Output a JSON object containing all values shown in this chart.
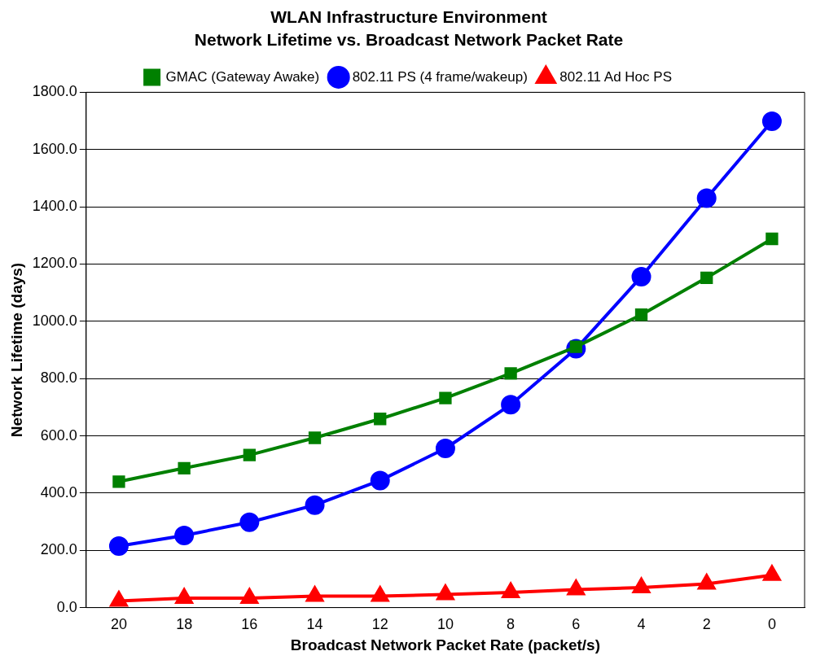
{
  "chart_data": {
    "type": "line",
    "title": "WLAN Infrastructure Environment",
    "subtitle": "Network Lifetime vs. Broadcast Network Packet Rate",
    "xlabel": "Broadcast Network Packet Rate (packet/s)",
    "ylabel": "Network Lifetime (days)",
    "categories": [
      "20",
      "18",
      "16",
      "14",
      "12",
      "10",
      "8",
      "6",
      "4",
      "2",
      "0"
    ],
    "series": [
      {
        "name": "802.11 Ad Hoc PS",
        "color": "#ff0000",
        "marker": "triangle",
        "values": [
          23,
          33,
          33,
          40,
          40,
          46,
          53,
          63,
          70,
          83,
          113
        ]
      },
      {
        "name": "802.11 PS (4 frame/wakeup)",
        "color": "#0000ff",
        "marker": "circle",
        "values": [
          215,
          252,
          298,
          358,
          444,
          556,
          709,
          904,
          1156,
          1430,
          1699
        ]
      },
      {
        "name": "GMAC (Gateway Awake)",
        "color": "#008000",
        "marker": "square",
        "values": [
          440,
          487,
          533,
          593,
          659,
          732,
          818,
          911,
          1023,
          1152,
          1288
        ]
      }
    ],
    "ylim": [
      0,
      1800
    ],
    "yticks": [
      {
        "value": 0,
        "label": "0.0"
      },
      {
        "value": 200,
        "label": "200.0"
      },
      {
        "value": 400,
        "label": "400.0"
      },
      {
        "value": 600,
        "label": "600.0"
      },
      {
        "value": 800,
        "label": "800.0"
      },
      {
        "value": 1000,
        "label": "1000.0"
      },
      {
        "value": 1200,
        "label": "1200.0"
      },
      {
        "value": 1400,
        "label": "1400.0"
      },
      {
        "value": 1600,
        "label": "1600.0"
      },
      {
        "value": 1800,
        "label": "1800.0"
      }
    ],
    "grid": "y",
    "legend": "top",
    "line_style": "solid"
  }
}
